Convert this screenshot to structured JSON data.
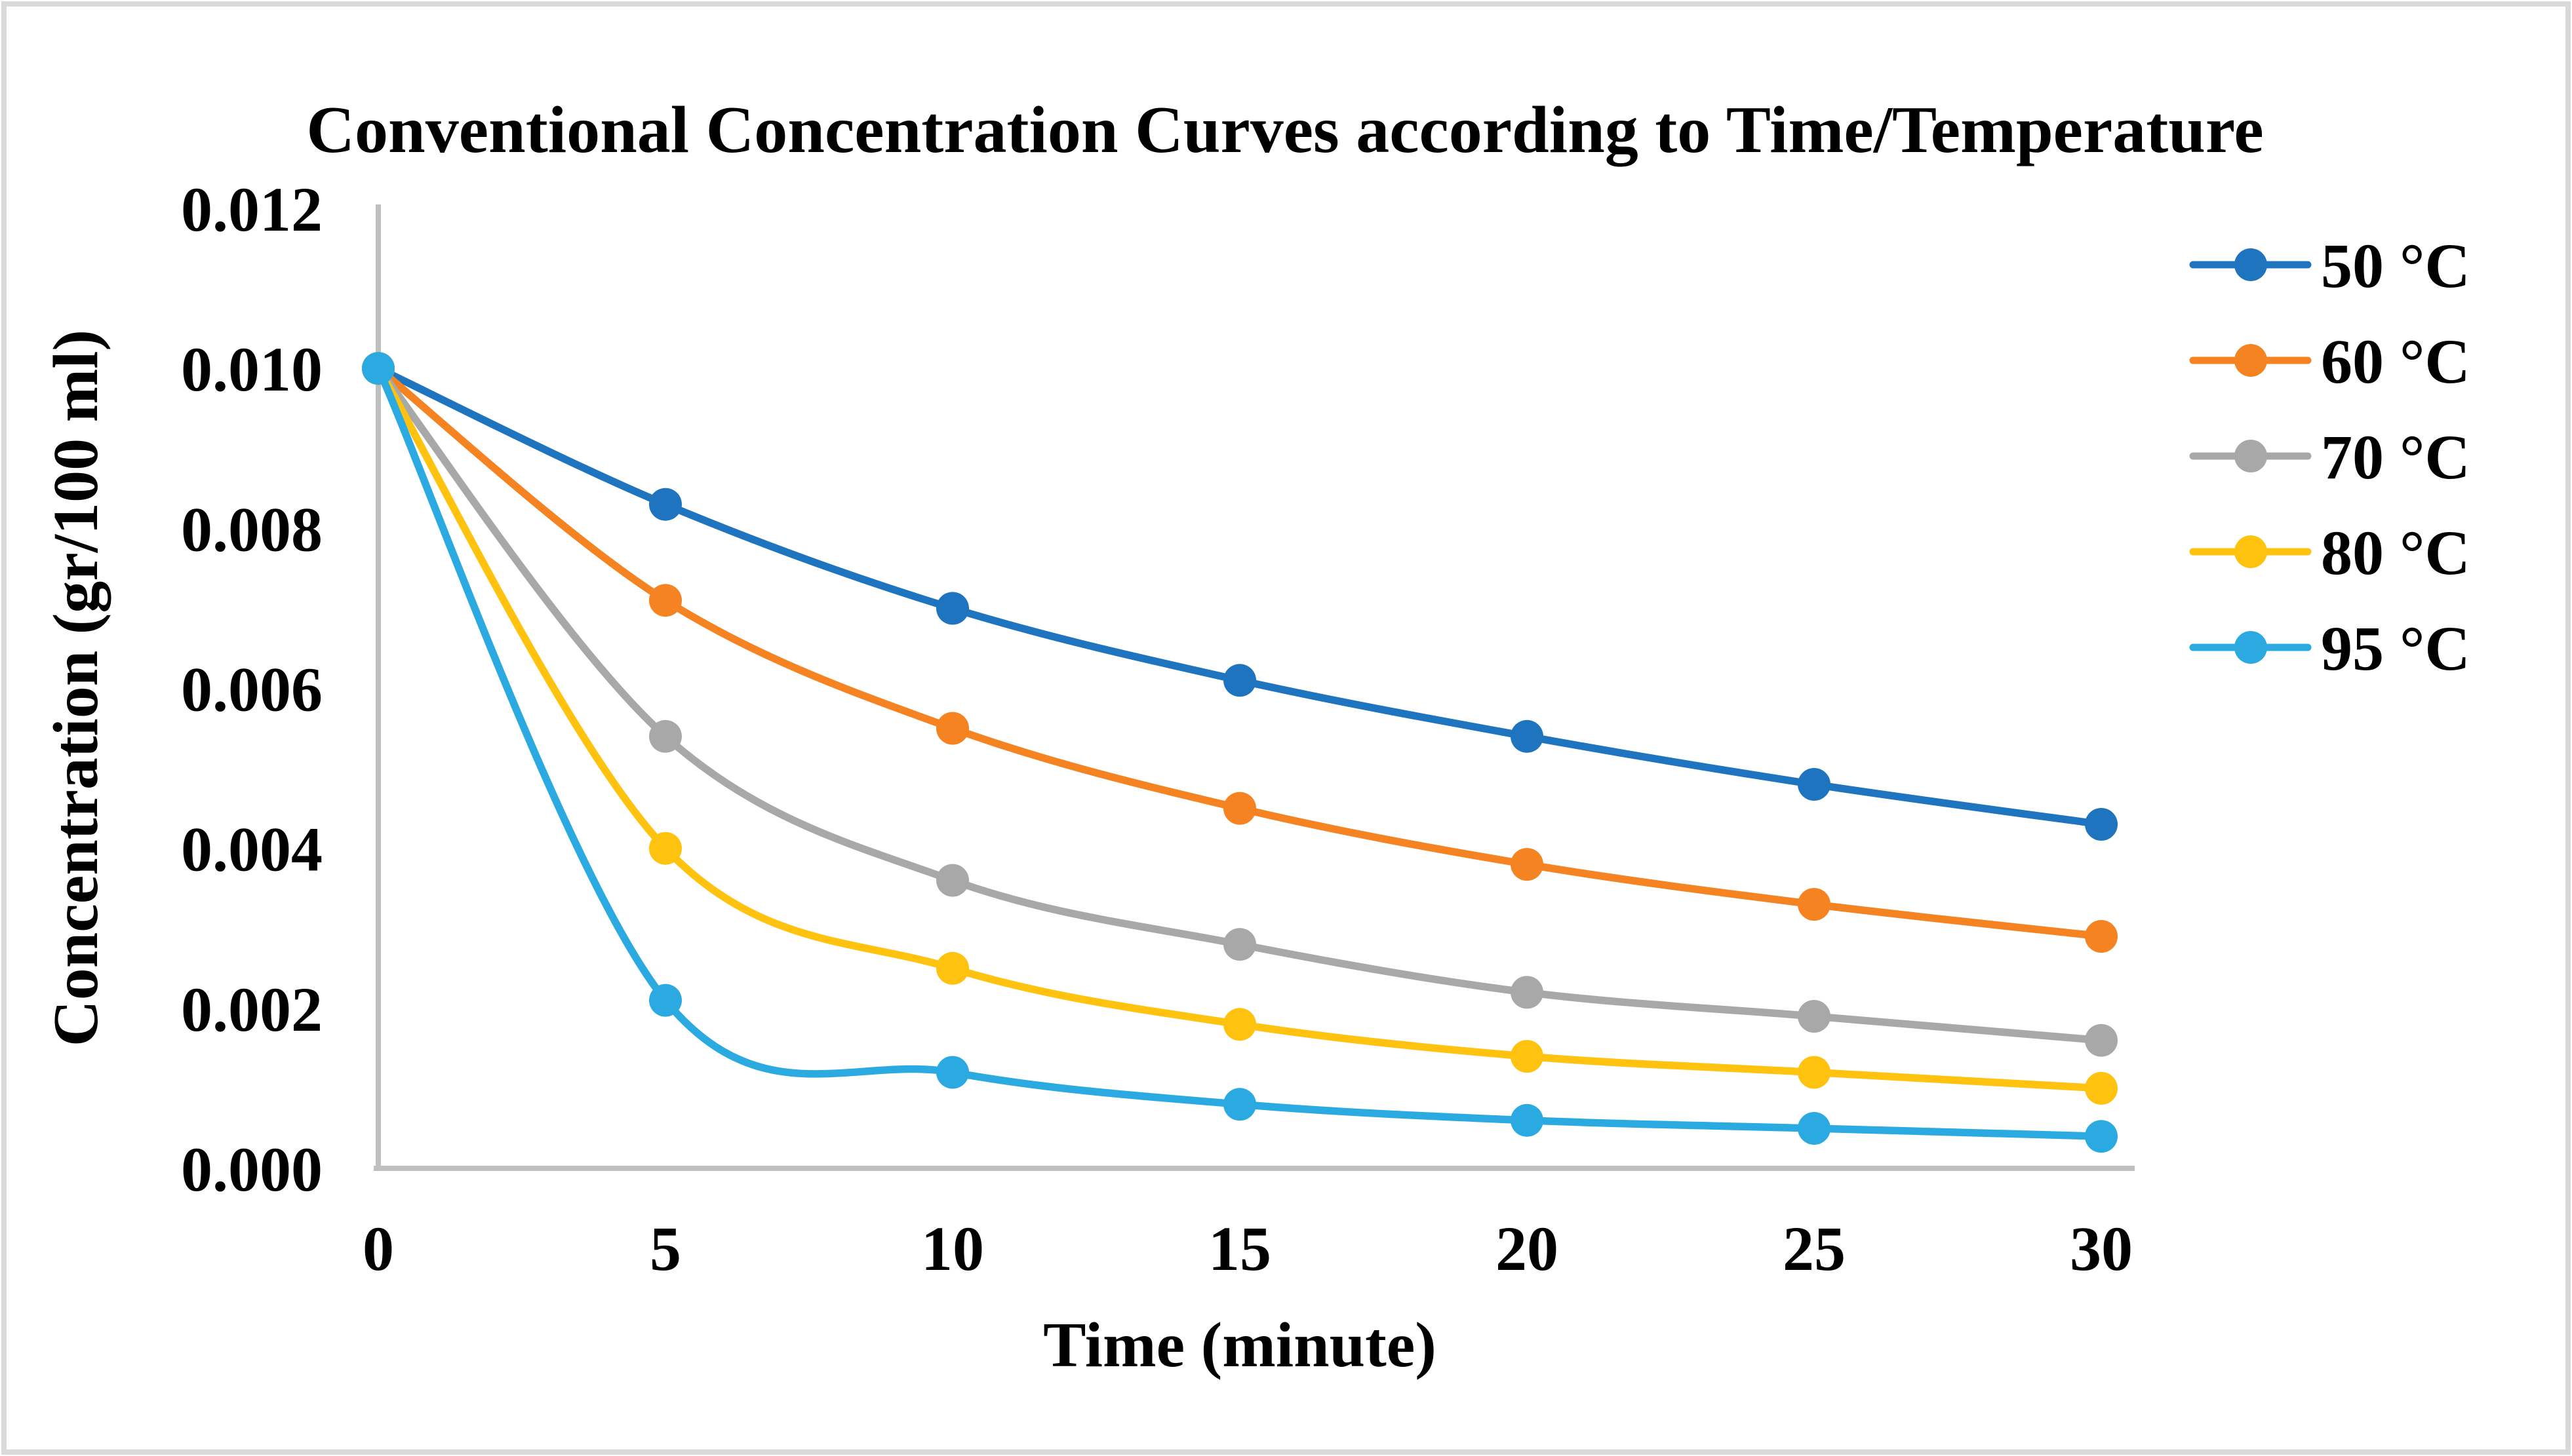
{
  "chart_data": {
    "type": "line",
    "title": "Conventional Concentration Curves according to Time/Temperature",
    "xlabel": "Time (minute)",
    "ylabel": "Concentration (gr/100 ml)",
    "x": [
      0,
      5,
      10,
      15,
      20,
      25,
      30
    ],
    "x_tick_labels": [
      "0",
      "5",
      "10",
      "15",
      "20",
      "25",
      "30"
    ],
    "xlim": [
      0,
      30
    ],
    "ylim": [
      0,
      0.012
    ],
    "y_ticks": {
      "values": [
        0,
        0.002,
        0.004,
        0.006,
        0.008,
        0.01,
        0.012
      ],
      "labels": [
        "0.000",
        "0.002",
        "0.004",
        "0.006",
        "0.008",
        "0.010",
        "0.012"
      ]
    },
    "grid": false,
    "smooth": true,
    "legend_position": "right",
    "series": [
      {
        "name": "50 °C",
        "color": "#1F74BF",
        "values": [
          0.01,
          0.0083,
          0.007,
          0.0061,
          0.0054,
          0.0048,
          0.0043
        ]
      },
      {
        "name": "60 °C",
        "color": "#F58322",
        "values": [
          0.01,
          0.0071,
          0.0055,
          0.0045,
          0.0038,
          0.0033,
          0.0029
        ]
      },
      {
        "name": "70 °C",
        "color": "#A8A8A8",
        "values": [
          0.01,
          0.0054,
          0.0036,
          0.0028,
          0.0022,
          0.0019,
          0.0016
        ]
      },
      {
        "name": "80 °C",
        "color": "#FFC20E",
        "values": [
          0.01,
          0.004,
          0.0025,
          0.0018,
          0.0014,
          0.0012,
          0.001
        ]
      },
      {
        "name": "95 °C",
        "color": "#2BAAE2",
        "values": [
          0.01,
          0.0021,
          0.0012,
          0.0008,
          0.0006,
          0.0005,
          0.0004
        ]
      }
    ],
    "axis_color": "#BFBFBF",
    "border_color": "#D9D9D9",
    "text_color": "#000000"
  }
}
